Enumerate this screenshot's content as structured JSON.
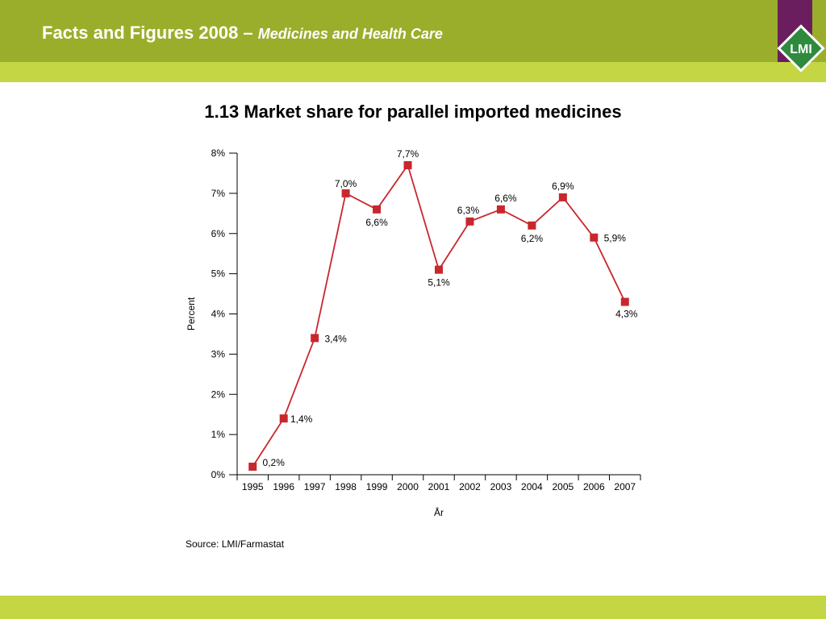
{
  "header": {
    "title": "Facts and Figures 2008 –",
    "subtitle": "Medicines and Health Care",
    "logo_text": "LMI"
  },
  "colors": {
    "header_band": "#9bae2b",
    "header_sub": "#c5d645",
    "logo_panel": "#6b1e5e",
    "series": "#c8272d"
  },
  "chart_data": {
    "type": "line",
    "title": "1.13 Market share for parallel imported medicines",
    "xlabel": "År",
    "ylabel": "Percent",
    "ylim": [
      0,
      8
    ],
    "y_ticks": [
      "0%",
      "1%",
      "2%",
      "3%",
      "4%",
      "5%",
      "6%",
      "7%",
      "8%"
    ],
    "categories": [
      "1995",
      "1996",
      "1997",
      "1998",
      "1999",
      "2000",
      "2001",
      "2002",
      "2003",
      "2004",
      "2005",
      "2006",
      "2007"
    ],
    "series": [
      {
        "values": [
          0.2,
          1.4,
          3.4,
          7.0,
          6.6,
          7.7,
          5.1,
          6.3,
          6.6,
          6.2,
          6.9,
          5.9,
          4.3
        ],
        "labels": [
          "0,2%",
          "1,4%",
          "3,4%",
          "7,0%",
          "6,6%",
          "7,7%",
          "5,1%",
          "6,3%",
          "6,6%",
          "6,2%",
          "6,9%",
          "5,9%",
          "4,3%"
        ]
      }
    ],
    "grid": false,
    "legend": "none"
  },
  "source": "Source: LMI/Farmastat"
}
